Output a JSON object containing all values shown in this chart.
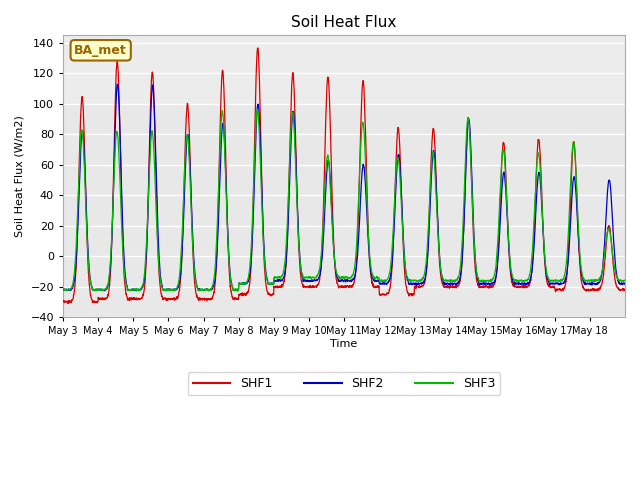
{
  "title": "Soil Heat Flux",
  "ylabel": "Soil Heat Flux (W/m2)",
  "xlabel": "Time",
  "ylim": [
    -40,
    145
  ],
  "plot_bg_color": "#e8e8e8",
  "fig_bg_color": "#ffffff",
  "shf1_color": "#dd0000",
  "shf2_color": "#0000cc",
  "shf3_color": "#00bb00",
  "annotation_text": "BA_met",
  "annotation_bg": "#ffffcc",
  "annotation_border": "#996600",
  "yticks": [
    -40,
    -20,
    0,
    20,
    40,
    60,
    80,
    100,
    120,
    140
  ],
  "xtick_labels": [
    "May 3",
    "May 4",
    "May 5",
    "May 6",
    "May 7",
    "May 8",
    "May 9",
    "May 10",
    "May 11",
    "May 12",
    "May 13",
    "May 14",
    "May 15",
    "May 16",
    "May 17",
    "May 18"
  ],
  "n_days": 16,
  "pts_per_day": 144,
  "shf1_peaks": [
    105,
    128,
    121,
    100,
    122,
    137,
    120,
    118,
    115,
    84,
    84,
    91,
    75,
    77,
    75,
    20
  ],
  "shf2_peaks": [
    82,
    113,
    112,
    80,
    87,
    100,
    95,
    63,
    60,
    67,
    69,
    90,
    55,
    55,
    52,
    50
  ],
  "shf3_peaks": [
    83,
    82,
    82,
    80,
    95,
    96,
    94,
    66,
    88,
    65,
    68,
    91,
    70,
    68,
    75,
    18
  ],
  "shf1_nights": [
    -30,
    -28,
    -28,
    -28,
    -28,
    -25,
    -20,
    -20,
    -20,
    -25,
    -20,
    -20,
    -20,
    -20,
    -22,
    -22
  ],
  "shf2_nights": [
    -22,
    -22,
    -22,
    -22,
    -22,
    -18,
    -16,
    -16,
    -16,
    -18,
    -18,
    -18,
    -18,
    -18,
    -18,
    -18
  ],
  "shf3_nights": [
    -22,
    -22,
    -22,
    -22,
    -22,
    -18,
    -14,
    -14,
    -14,
    -16,
    -16,
    -16,
    -16,
    -16,
    -16,
    -16
  ],
  "grid_color": "#ffffff",
  "spine_color": "#aaaaaa"
}
